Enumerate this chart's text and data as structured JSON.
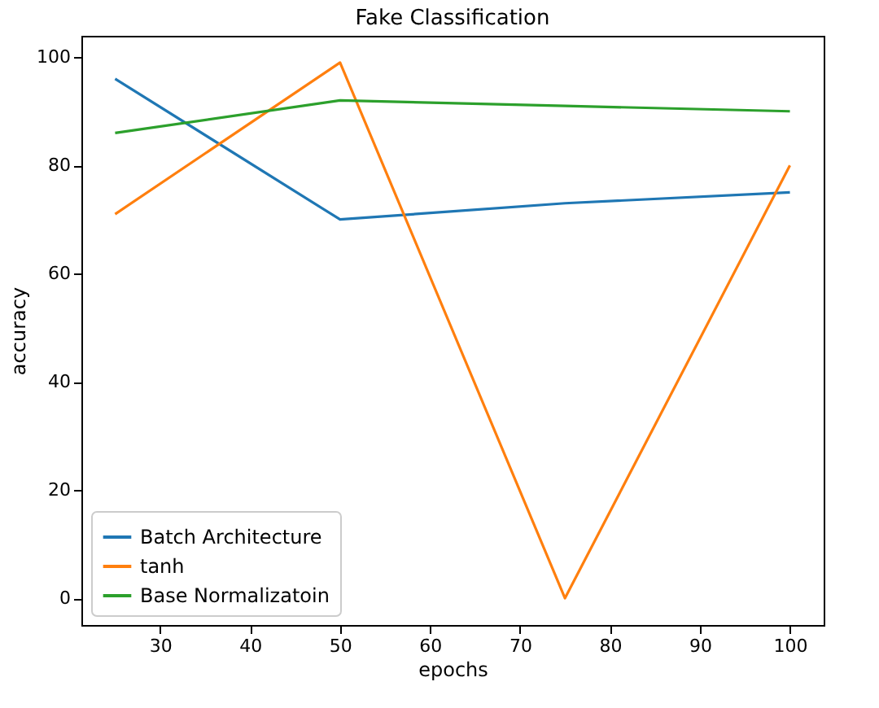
{
  "chart_data": {
    "type": "line",
    "title": "Fake Classification",
    "xlabel": "epochs",
    "ylabel": "accuracy",
    "x": [
      25,
      50,
      75,
      100
    ],
    "series": [
      {
        "name": "Batch Architecture",
        "color": "#1f77b4",
        "values": [
          96,
          70,
          73,
          75
        ]
      },
      {
        "name": "tanh",
        "color": "#ff7f0e",
        "values": [
          71,
          99,
          0,
          80
        ]
      },
      {
        "name": "Base Normalizatoin",
        "color": "#2ca02c",
        "values": [
          86,
          92,
          91,
          90
        ]
      }
    ],
    "xlim": [
      21.25,
      103.75
    ],
    "xticks": [
      30,
      40,
      50,
      60,
      70,
      80,
      90,
      100
    ],
    "ylim": [
      -4.95,
      103.95
    ],
    "yticks": [
      0,
      20,
      40,
      60,
      80,
      100
    ],
    "grid": false,
    "legend": "bottom left",
    "marker": "none",
    "line_style": "solid"
  }
}
